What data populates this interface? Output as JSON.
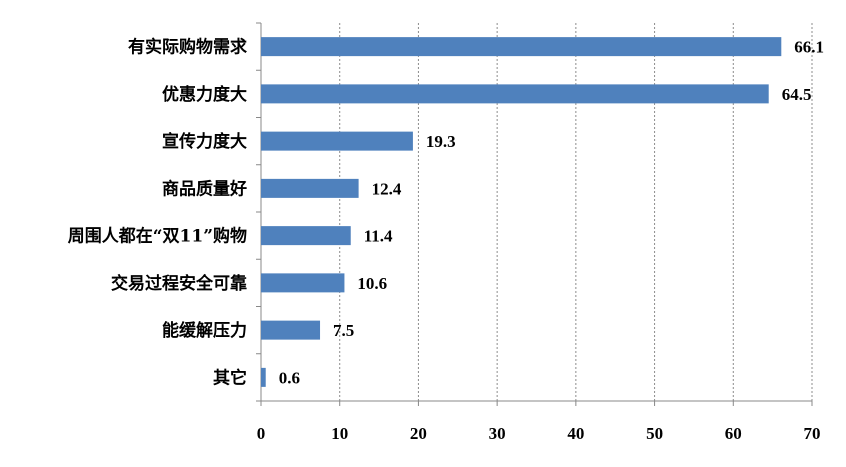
{
  "chart_data": {
    "type": "bar",
    "orientation": "horizontal",
    "title": "",
    "xlabel": "",
    "ylabel": "",
    "categories": [
      "有实际购物需求",
      "优惠力度大",
      "宣传力度大",
      "商品质量好",
      "周围人都在“双11”购物",
      "交易过程安全可靠",
      "能缓解压力",
      "其它"
    ],
    "values": [
      66.1,
      64.5,
      19.3,
      12.4,
      11.4,
      10.6,
      7.5,
      0.6
    ],
    "value_labels": [
      "66.1",
      "64.5",
      "19.3",
      "12.4",
      "11.4",
      "10.6",
      "7.5",
      "0.6"
    ],
    "xlim": [
      0,
      70
    ],
    "x_ticks": [
      "0",
      "10",
      "20",
      "30",
      "40",
      "50",
      "60",
      "70"
    ],
    "grid": "vertical dashed",
    "legend": "none",
    "bar_color": "#4f81bd"
  }
}
